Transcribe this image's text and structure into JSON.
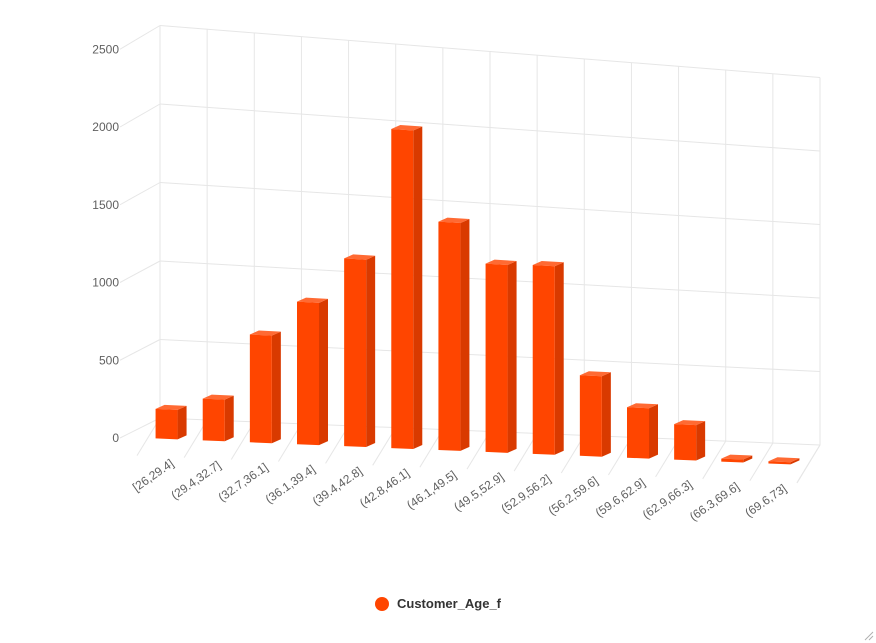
{
  "chart_data": {
    "type": "bar",
    "title": "",
    "xlabel": "",
    "ylabel": "",
    "categories": [
      "[26,29.4]",
      "(29.4,32.7]",
      "(32.7,36.1]",
      "(36.1,39.4]",
      "(39.4,42.8]",
      "(42.8,46.1]",
      "(46.1,49.5]",
      "(49.5,52.9]",
      "(52.9,56.2]",
      "(56.2,59.6]",
      "(59.6,62.9]",
      "(62.9,66.3]",
      "(66.3,69.6]",
      "(69.6,73]"
    ],
    "series": [
      {
        "name": "Customer_Age_f",
        "values": [
          190,
          270,
          700,
          930,
          1230,
          2100,
          1510,
          1250,
          1260,
          540,
          340,
          240,
          20,
          15
        ]
      }
    ],
    "yticks": [
      "0",
      "500",
      "1000",
      "1500",
      "2000",
      "2500"
    ],
    "ylim": [
      0,
      2500
    ],
    "grid": true,
    "legend_position": "bottom-center",
    "colors": {
      "bar": "#ff4500",
      "bar_top": "#ff6a33",
      "bar_side": "#d93a00",
      "grid": "#e6e6e6",
      "axis_text": "#606060"
    }
  },
  "legend": {
    "label": "Customer_Age_f"
  }
}
